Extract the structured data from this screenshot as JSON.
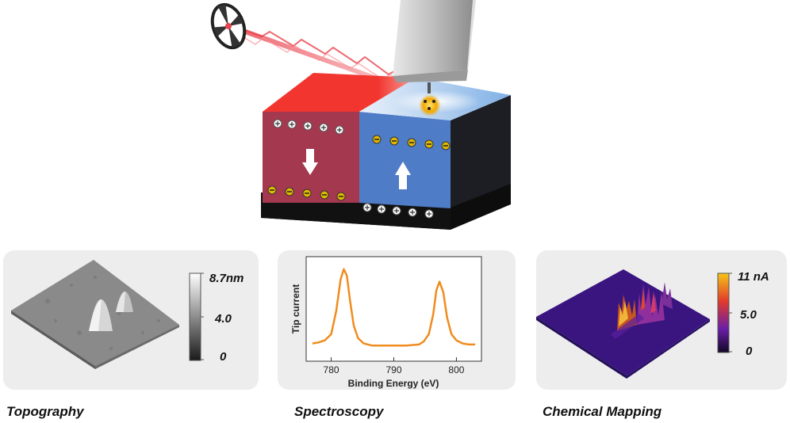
{
  "panels": {
    "topography": {
      "caption": "Topography",
      "colorbar_labels": [
        "8.7nm",
        "4.0",
        "0"
      ]
    },
    "spectroscopy": {
      "caption": "Spectroscopy"
    },
    "chemical": {
      "caption": "Chemical Mapping",
      "colorbar_labels": [
        "11 nA",
        "5.0",
        "0"
      ]
    }
  },
  "chart_data": {
    "type": "line",
    "xlabel": "Binding Energy (eV)",
    "ylabel": "Tip current",
    "xlim": [
      776,
      804
    ],
    "ylim": [
      0,
      1
    ],
    "x_ticks": [
      "780",
      "790",
      "800"
    ],
    "grid": false,
    "color": "#f08c1e",
    "x": [
      777,
      778,
      779,
      780,
      780.8,
      781.5,
      782,
      782.5,
      783,
      783.6,
      784.3,
      785.2,
      786.5,
      788,
      790,
      792,
      794,
      794.8,
      795.6,
      796.3,
      796.8,
      797.3,
      797.9,
      798.5,
      799.2,
      800,
      801,
      802,
      803
    ],
    "y": [
      0.17,
      0.18,
      0.2,
      0.26,
      0.48,
      0.78,
      0.88,
      0.82,
      0.58,
      0.34,
      0.22,
      0.17,
      0.15,
      0.15,
      0.15,
      0.15,
      0.16,
      0.19,
      0.26,
      0.45,
      0.68,
      0.76,
      0.66,
      0.42,
      0.26,
      0.2,
      0.17,
      0.16,
      0.16
    ]
  }
}
